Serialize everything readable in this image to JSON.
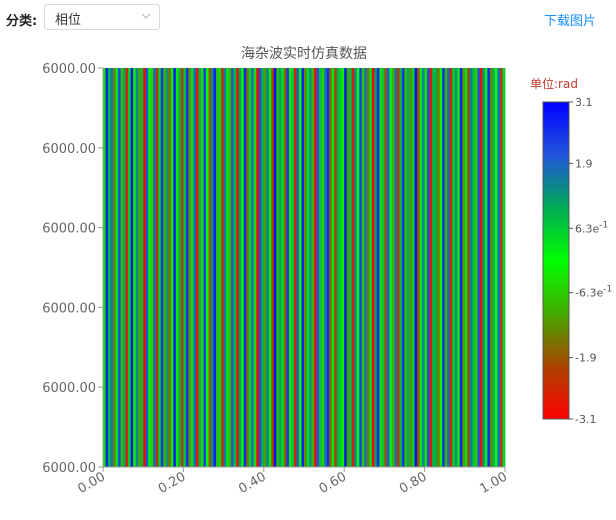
{
  "toolbar": {
    "category_label": "分类:",
    "category_value": "相位",
    "download_label": "下载图片"
  },
  "chart_data": {
    "type": "heatmap",
    "title": "海杂波实时仿真数据",
    "x_ticks": [
      "0.00",
      "0.20",
      "0.40",
      "0.60",
      "0.80",
      "1.00"
    ],
    "xlim": [
      0,
      1
    ],
    "y_ticks": [
      "6000.00",
      "6000.00",
      "6000.00",
      "6000.00",
      "6000.00",
      "6000.00"
    ],
    "colorbar": {
      "unit": "单位:rad",
      "min": -3.1,
      "max": 3.1,
      "ticks": [
        {
          "value": 3.1,
          "base": "3.1",
          "exp": ""
        },
        {
          "value": 1.9,
          "base": "1.9",
          "exp": ""
        },
        {
          "value": 0.63,
          "base": "6.3e",
          "exp": "-1"
        },
        {
          "value": -0.63,
          "base": "-6.3e",
          "exp": "-1"
        },
        {
          "value": -1.9,
          "base": "-1.9",
          "exp": ""
        },
        {
          "value": -3.1,
          "base": "-3.1",
          "exp": ""
        }
      ],
      "colors": [
        "#ff0000",
        "#aa4400",
        "#44aa00",
        "#00ff00",
        "#00aa55",
        "#2255dd",
        "#0000ff"
      ]
    },
    "stripe_phases": [
      -0.4,
      2.6,
      0.9,
      1.7,
      -1.5,
      0.3,
      2.2,
      -0.8,
      1.1,
      -2.6,
      0.5,
      2.9,
      -0.2,
      1.5,
      -1.1,
      0.8,
      -2.9,
      2.1,
      0.1,
      -0.6,
      1.9,
      -2.3,
      0.6,
      2.4,
      -0.9,
      1.3,
      -1.7,
      0.2,
      2.8,
      -0.3,
      1.0,
      -2.1,
      0.7,
      2.5,
      -1.3,
      0.4,
      1.8,
      -2.8,
      0.9,
      -0.5,
      2.3,
      0.0,
      -1.9,
      1.4,
      2.7,
      -0.7,
      0.5,
      -2.4,
      1.6,
      0.3,
      -1.0,
      2.0,
      0.8,
      -2.7,
      1.2,
      -0.1,
      2.6,
      -1.6,
      0.6,
      1.7,
      -0.4,
      -3.0,
      2.2,
      0.9,
      -1.2,
      1.5,
      0.2,
      -2.2,
      2.9,
      -0.8,
      1.1,
      0.4,
      -1.8,
      2.4,
      -0.3,
      0.7,
      -2.5,
      1.9,
      0.1,
      2.7,
      -1.4,
      0.5,
      1.3,
      -0.9,
      -2.8,
      2.1,
      0.8,
      -0.6,
      1.6,
      2.5,
      -1.7,
      0.3,
      -2.0,
      1.0,
      0.6,
      -0.2,
      2.8,
      -1.1,
      0.9,
      -2.6,
      1.4,
      0.0,
      2.3,
      -0.7,
      1.8,
      -1.5,
      0.4,
      -2.9,
      1.2,
      2.6,
      -0.5,
      0.7,
      -1.9,
      2.0,
      0.2,
      -1.0,
      1.7,
      -2.3,
      0.9,
      2.4,
      -0.8,
      1.1,
      -1.3,
      0.5,
      2.9,
      -2.1,
      0.3,
      1.5,
      -0.4,
      2.2,
      -2.7,
      0.8,
      1.0,
      -1.6,
      0.1,
      2.5,
      -0.9,
      1.9,
      -2.4,
      0.6,
      1.3,
      -0.3,
      2.7,
      -1.2,
      0.4,
      -2.0,
      1.6,
      0.7,
      -0.6,
      2.1,
      -2.8,
      1.2,
      0.2,
      2.6,
      -1.4,
      0.9,
      -0.1,
      1.8,
      -2.2,
      0.5
    ]
  }
}
